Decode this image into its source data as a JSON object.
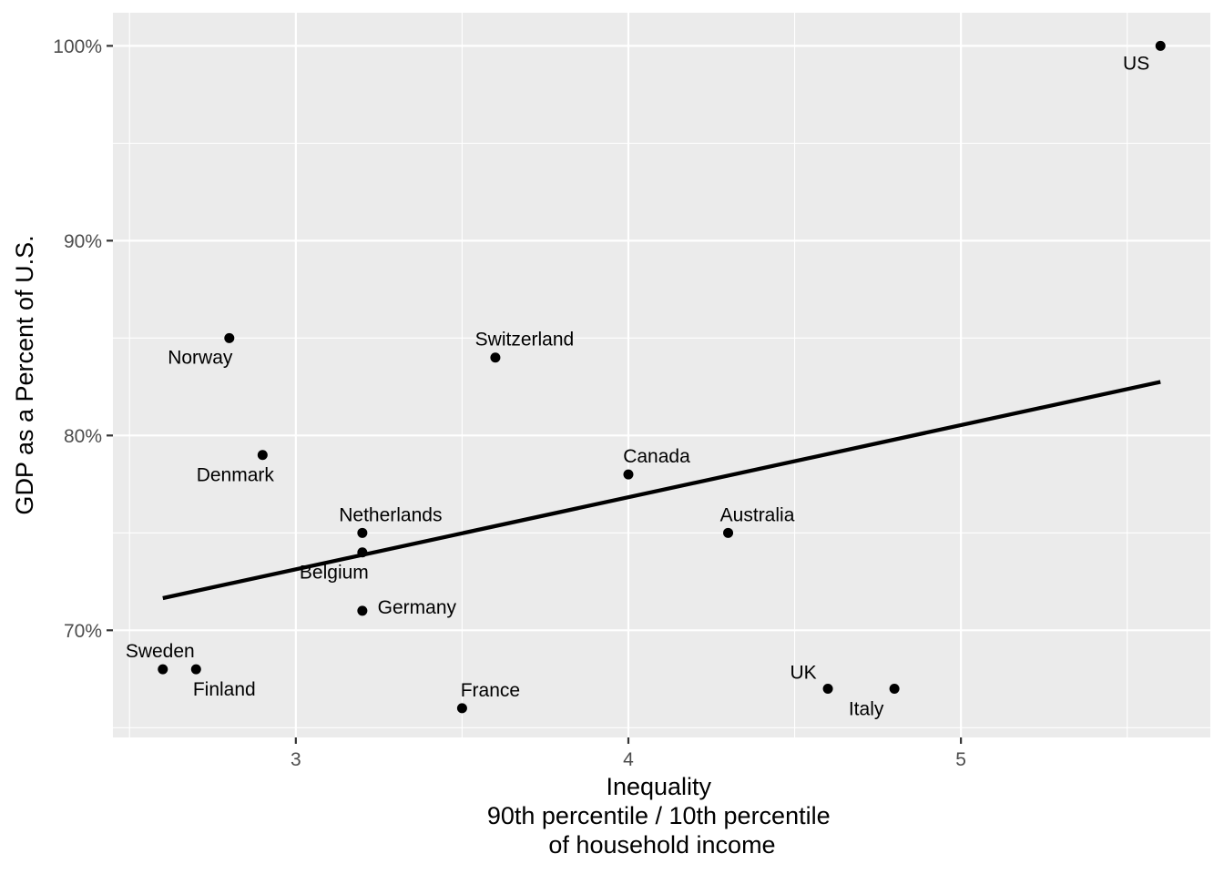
{
  "chart_data": {
    "type": "scatter",
    "title": "",
    "xlabel": [
      "Inequality",
      "90th percentile / 10th percentile",
      "of household income"
    ],
    "ylabel": "GDP as a Percent of U.S.",
    "xlim": [
      2.45,
      5.75
    ],
    "ylim": [
      64.5,
      101.7
    ],
    "x_ticks": [
      3,
      4,
      5
    ],
    "x_tick_labels": [
      "3",
      "4",
      "5"
    ],
    "y_ticks": [
      70,
      80,
      90,
      100
    ],
    "y_tick_labels": [
      "70%",
      "80%",
      "90%",
      "100%"
    ],
    "grid": true,
    "legend": "none",
    "points": [
      {
        "label": "US",
        "x": 5.6,
        "y": 100
      },
      {
        "label": "Norway",
        "x": 2.8,
        "y": 85
      },
      {
        "label": "Switzerland",
        "x": 3.6,
        "y": 84
      },
      {
        "label": "Denmark",
        "x": 2.9,
        "y": 79
      },
      {
        "label": "Canada",
        "x": 4.0,
        "y": 78
      },
      {
        "label": "Netherlands",
        "x": 3.2,
        "y": 75
      },
      {
        "label": "Australia",
        "x": 4.3,
        "y": 75
      },
      {
        "label": "Belgium",
        "x": 3.2,
        "y": 74
      },
      {
        "label": "Germany",
        "x": 3.2,
        "y": 71
      },
      {
        "label": "Sweden",
        "x": 2.6,
        "y": 68
      },
      {
        "label": "Finland",
        "x": 2.7,
        "y": 68
      },
      {
        "label": "UK",
        "x": 4.6,
        "y": 67
      },
      {
        "label": "Italy",
        "x": 4.8,
        "y": 67
      },
      {
        "label": "France",
        "x": 3.5,
        "y": 66
      }
    ],
    "trend_line": {
      "x": [
        2.6,
        5.6
      ],
      "y": [
        71.65,
        82.75
      ]
    },
    "colors": {
      "panel": "#ebebeb",
      "grid": "#ffffff",
      "points": "#000000",
      "line": "#000000"
    }
  }
}
